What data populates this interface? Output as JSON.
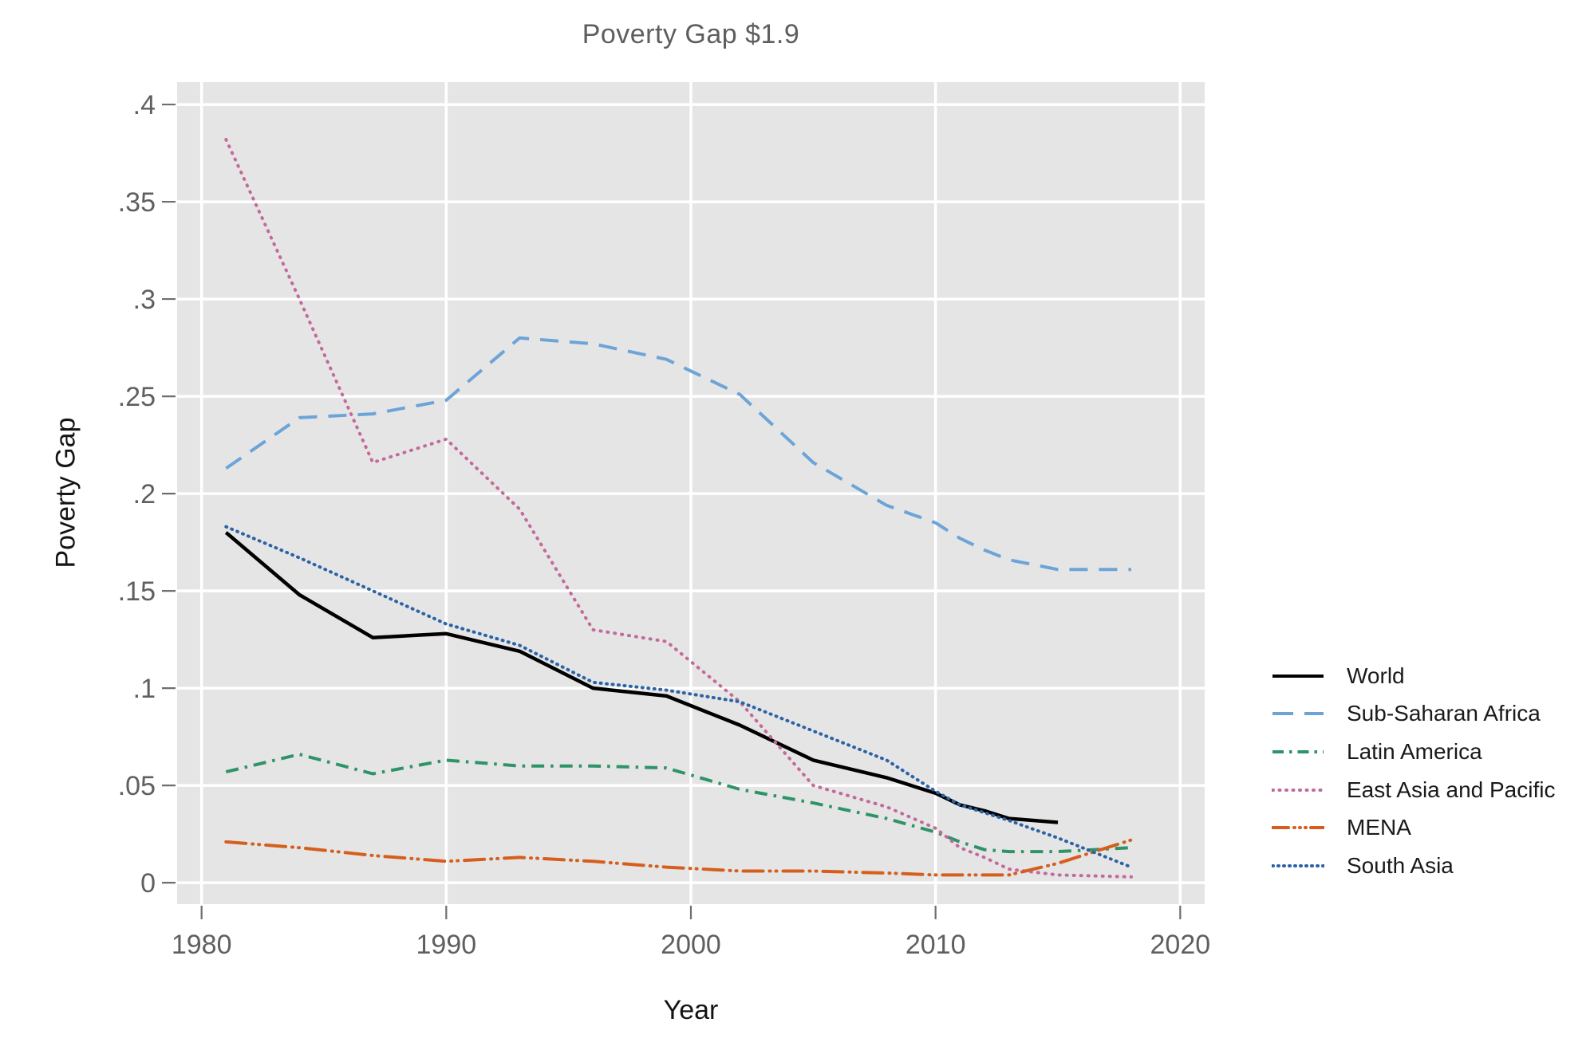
{
  "chart_data": {
    "type": "line",
    "title": "Poverty Gap $1.9",
    "xlabel": "Year",
    "ylabel": "Poverty Gap",
    "xlim": [
      1979,
      2021
    ],
    "ylim": [
      -0.011,
      0.4115
    ],
    "xticks": [
      1980,
      1990,
      2000,
      2010,
      2020
    ],
    "yticks": {
      "values": [
        0,
        0.05,
        0.1,
        0.15,
        0.2,
        0.25,
        0.3,
        0.35,
        0.4
      ],
      "labels": [
        "0",
        ".05",
        ".1",
        ".15",
        ".2",
        ".25",
        ".3",
        ".35",
        ".4"
      ]
    },
    "grid": true,
    "panel_bg": "#E5E5E5",
    "grid_color": "#FFFFFF",
    "tick_color": "#6e6e6e",
    "legend_position": "right",
    "x": [
      1981,
      1984,
      1987,
      1990,
      1993,
      1996,
      1999,
      2002,
      2005,
      2008,
      2010,
      2011,
      2012,
      2013,
      2015,
      2018
    ],
    "series": [
      {
        "name": "World",
        "color": "#000000",
        "dash": "solid",
        "values": [
          0.18,
          0.148,
          0.126,
          0.128,
          0.119,
          0.1,
          0.096,
          0.081,
          0.063,
          0.054,
          0.046,
          0.04,
          0.037,
          0.033,
          0.031,
          null
        ]
      },
      {
        "name": "Sub-Saharan Africa",
        "color": "#6DA4D8",
        "dash": "long-dash",
        "values": [
          0.213,
          0.239,
          0.241,
          0.248,
          0.28,
          0.277,
          0.269,
          0.251,
          0.216,
          0.194,
          0.185,
          0.177,
          0.171,
          0.166,
          0.161,
          0.161
        ]
      },
      {
        "name": "Latin America",
        "color": "#2E9468",
        "dash": "dash-dot",
        "values": [
          0.057,
          0.066,
          0.056,
          0.063,
          0.06,
          0.06,
          0.059,
          0.048,
          0.041,
          0.033,
          0.026,
          0.021,
          0.017,
          0.016,
          0.016,
          0.018
        ]
      },
      {
        "name": "East Asia and Pacific",
        "color": "#C4699B",
        "dash": "dot",
        "values": [
          0.382,
          0.3,
          0.216,
          0.228,
          0.192,
          0.13,
          0.124,
          0.093,
          0.05,
          0.039,
          0.028,
          0.018,
          0.013,
          0.007,
          0.004,
          0.003
        ]
      },
      {
        "name": "MENA",
        "color": "#D65E1D",
        "dash": "dash-dot-dot",
        "values": [
          0.021,
          0.018,
          0.014,
          0.011,
          0.013,
          0.011,
          0.008,
          0.006,
          0.006,
          0.005,
          0.004,
          0.004,
          0.004,
          0.004,
          0.01,
          0.022
        ]
      },
      {
        "name": "South Asia",
        "color": "#2B63A6",
        "dash": "dense-dot",
        "values": [
          0.183,
          0.167,
          0.15,
          0.133,
          0.122,
          0.103,
          0.099,
          0.093,
          0.078,
          0.063,
          0.047,
          0.04,
          0.036,
          0.032,
          0.023,
          0.008
        ]
      }
    ]
  }
}
